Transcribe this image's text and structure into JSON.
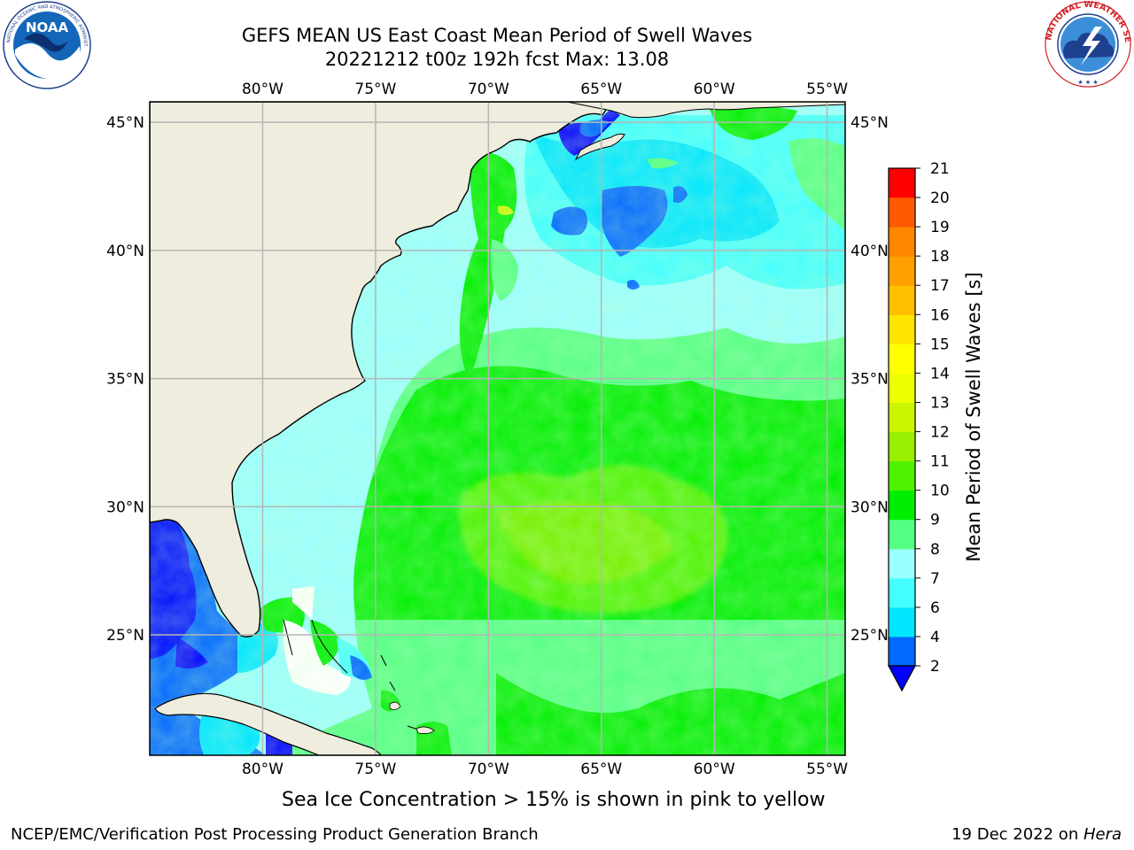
{
  "title_line1": "GEFS MEAN US East Coast Mean Period of Swell Waves",
  "title_line2": "20221212 t00z 192h fcst   Max: 13.08",
  "logos": {
    "left": {
      "icon": "noaa-logo",
      "text": "NOAA",
      "ring_text": "NATIONAL OCEANIC AND ATMOSPHERIC ADMINISTRATION · U.S. DEPARTMENT OF COMMERCE"
    },
    "right": {
      "icon": "nws-logo",
      "ring_text": "NATIONAL WEATHER SERVICE"
    }
  },
  "map": {
    "lon_range": [
      -85,
      -54.2
    ],
    "lat_range": [
      20.3,
      45.8
    ],
    "lon_ticks": [
      {
        "value": -80,
        "label": "80°W"
      },
      {
        "value": -75,
        "label": "75°W"
      },
      {
        "value": -70,
        "label": "70°W"
      },
      {
        "value": -65,
        "label": "65°W"
      },
      {
        "value": -60,
        "label": "60°W"
      },
      {
        "value": -55,
        "label": "55°W"
      }
    ],
    "lat_ticks": [
      {
        "value": 45,
        "label": "45°N"
      },
      {
        "value": 40,
        "label": "40°N"
      },
      {
        "value": 35,
        "label": "35°N"
      },
      {
        "value": 30,
        "label": "30°N"
      },
      {
        "value": 25,
        "label": "25°N"
      }
    ],
    "gridlines": true,
    "land_color": "#efedde",
    "grid_color": "#b5b5b5"
  },
  "colorbar": {
    "label": "Mean Period of Swell Waves [s]",
    "ticks": [
      "2",
      "4",
      "6",
      "7",
      "8",
      "9",
      "10",
      "11",
      "12",
      "13",
      "14",
      "15",
      "16",
      "17",
      "18",
      "19",
      "20",
      "21"
    ],
    "colors": [
      "#0069ff",
      "#00e6ff",
      "#43ffff",
      "#9affff",
      "#55ff83",
      "#00ee00",
      "#4ff200",
      "#99ef00",
      "#c9f500",
      "#eeff00",
      "#ffff00",
      "#ffe500",
      "#ffbf00",
      "#ffa000",
      "#ff8700",
      "#ff5a00",
      "#ff2d00",
      "#ff0000"
    ],
    "under_color": "#0000ff"
  },
  "note": "Sea Ice Concentration > 15% is shown in pink to yellow",
  "footer_left": "NCEP/EMC/Verification Post Processing Product Generation Branch",
  "footer_right_date": "19 Dec 2022 on ",
  "footer_right_machine": "Hera"
}
